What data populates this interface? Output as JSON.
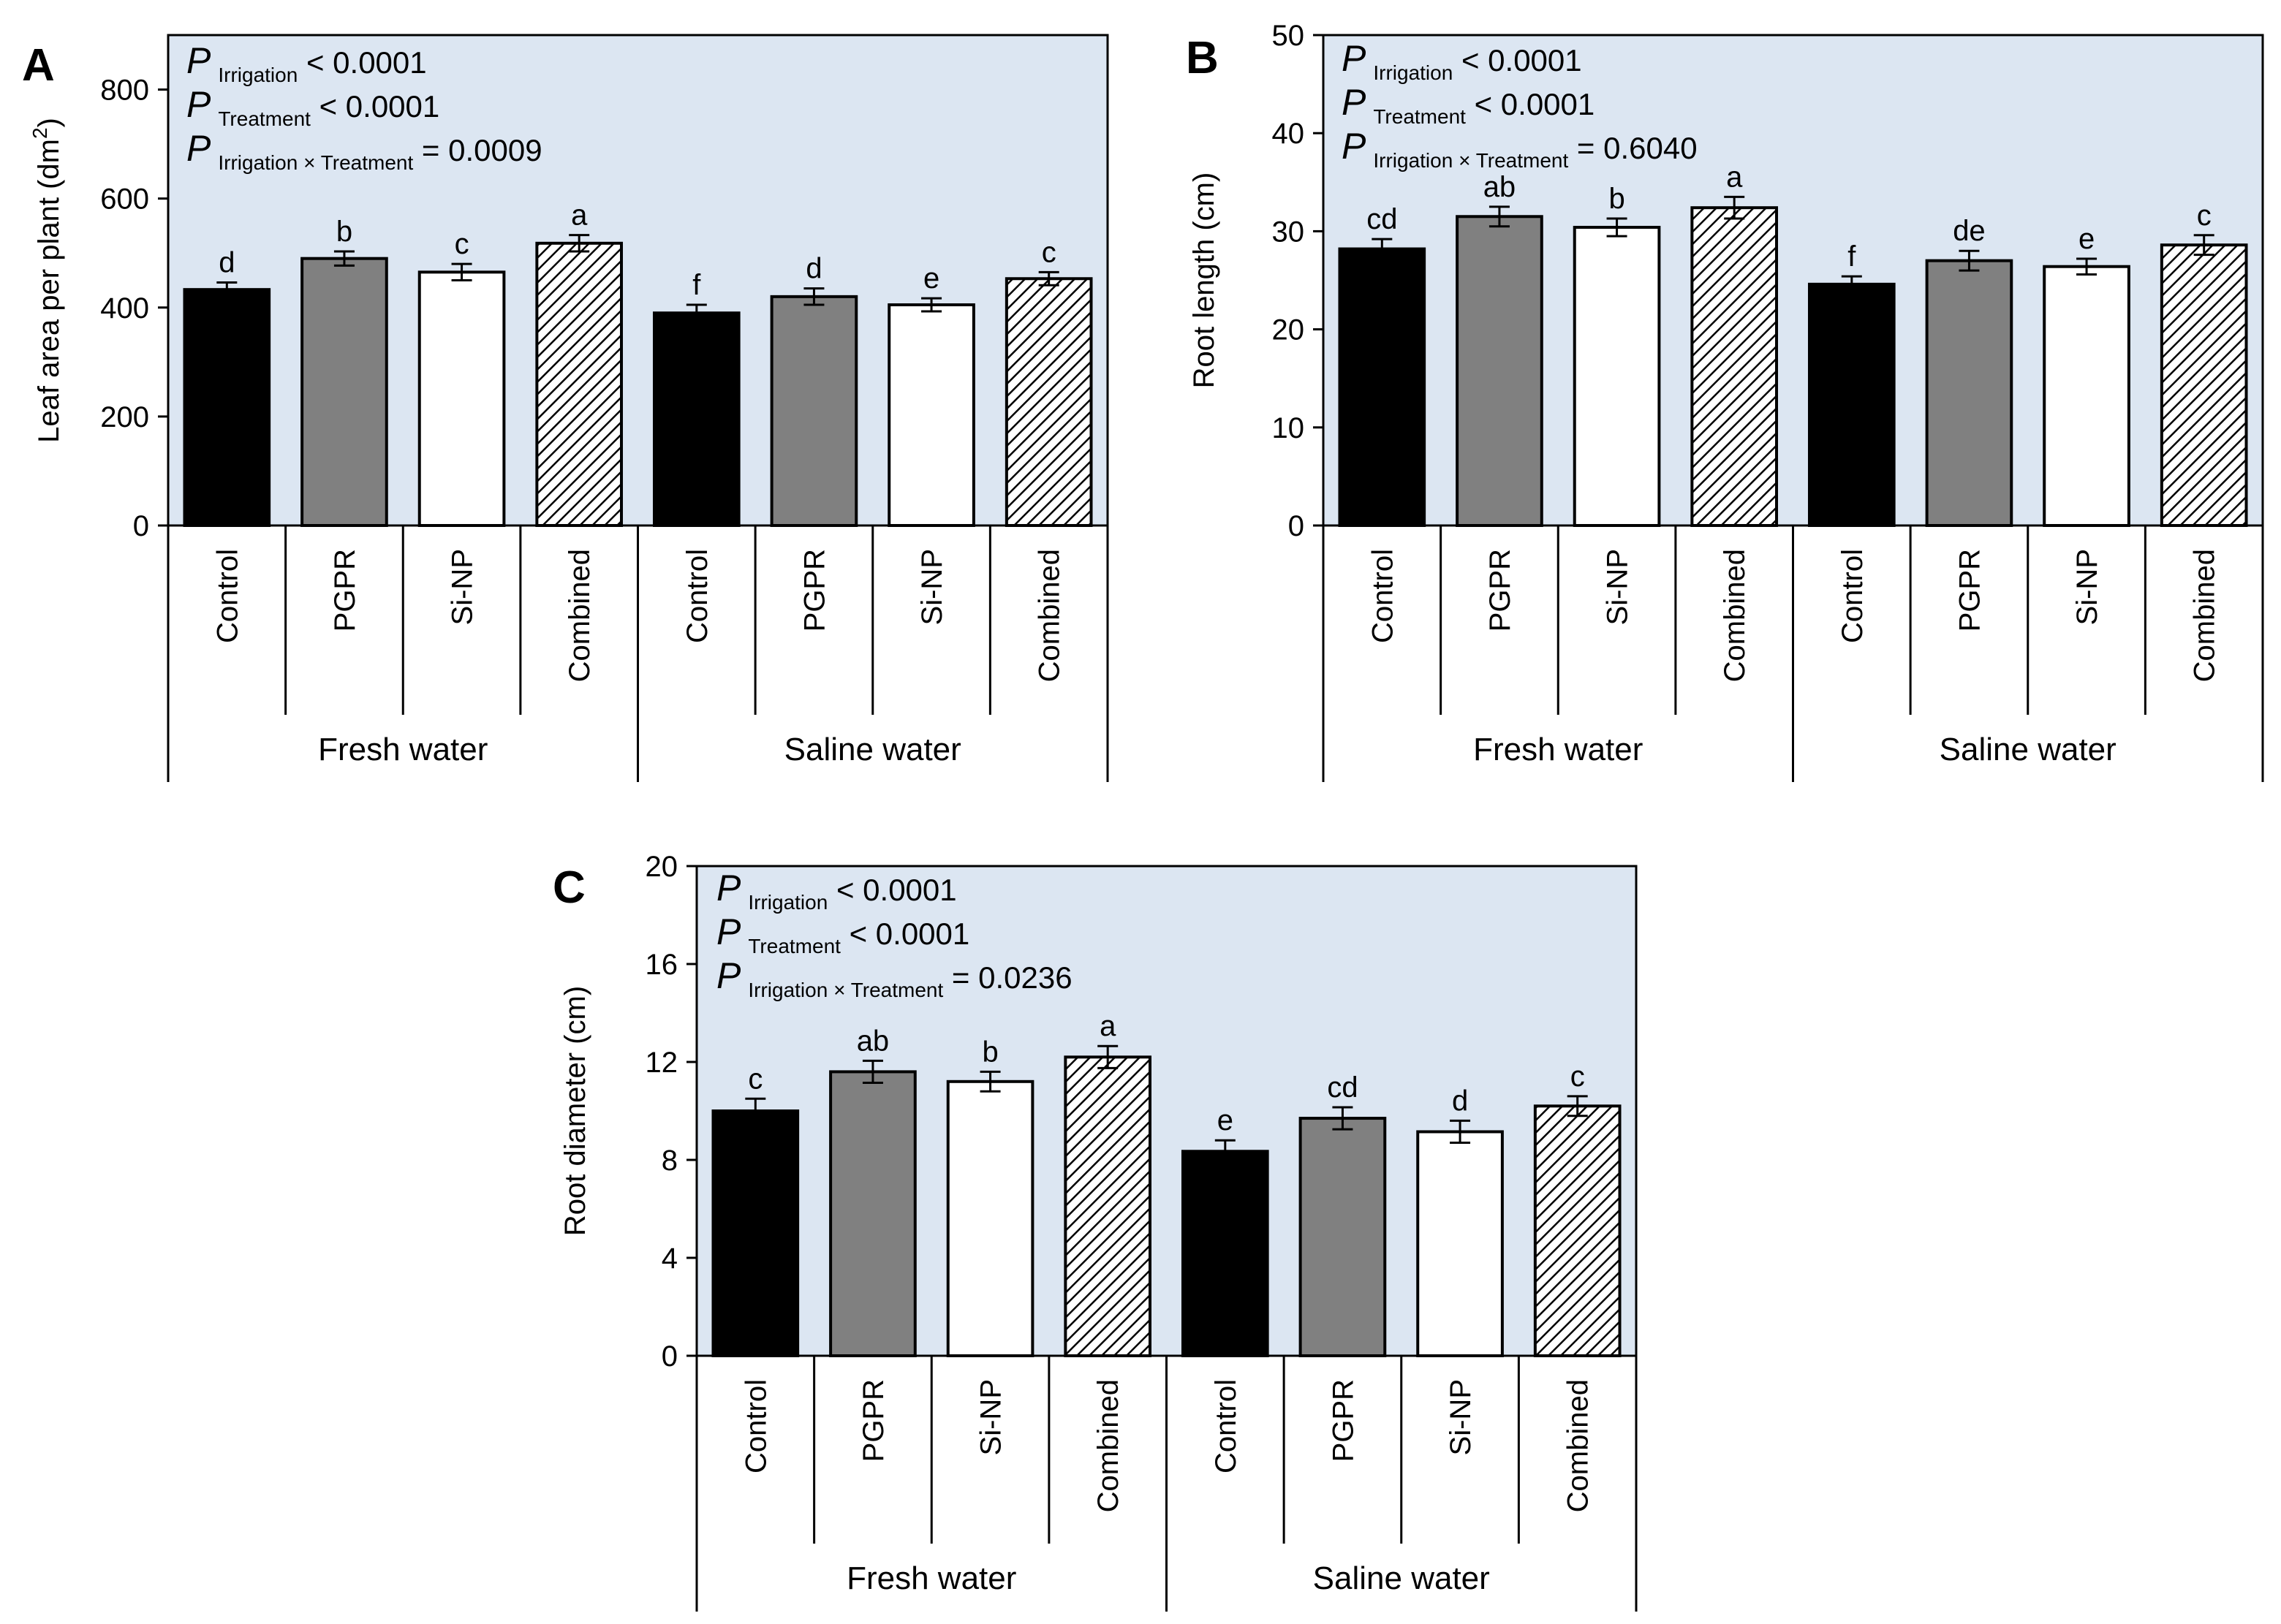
{
  "figure": {
    "colors": {
      "plot_background": "#dce6f2",
      "control": "#000000",
      "pgpr": "#808080",
      "sinp": "#ffffff",
      "combined_pattern": "hatched",
      "axis": "#000000"
    },
    "groups": [
      "Fresh water",
      "Saline water"
    ]
  },
  "chart_data": [
    {
      "type": "bar",
      "panel": "A",
      "ylabel": "Leaf area per plant (dm2)",
      "ylabel_main": "Leaf area per plant (dm",
      "ylabel_sup": "2",
      "ylabel_close": ")",
      "ylim": [
        0,
        900
      ],
      "yticks": [
        0,
        200,
        400,
        600,
        800
      ],
      "groups": [
        "Fresh water",
        "Saline water"
      ],
      "categories": [
        "Control",
        "PGPR",
        "Si-NP",
        "Combined",
        "Control",
        "PGPR",
        "Si-NP",
        "Combined"
      ],
      "values": [
        433,
        490,
        465,
        518,
        390,
        420,
        405,
        453
      ],
      "errors": [
        13,
        13,
        15,
        15,
        15,
        15,
        12,
        12
      ],
      "letters": [
        "d",
        "b",
        "c",
        "a",
        "f",
        "d",
        "e",
        "c"
      ],
      "fills": [
        "black",
        "gray",
        "white",
        "hatch",
        "black",
        "gray",
        "white",
        "hatch"
      ],
      "stats": [
        {
          "p": "P",
          "sub": "Irrigation",
          "rest": " < 0.0001"
        },
        {
          "p": "P",
          "sub": "Treatment",
          "rest": " < 0.0001"
        },
        {
          "p": "P",
          "sub": "Irrigation × Treatment",
          "rest": " = 0.0009"
        }
      ]
    },
    {
      "type": "bar",
      "panel": "B",
      "ylabel": "Root length (cm)",
      "ylim": [
        0,
        50
      ],
      "yticks": [
        0,
        10,
        20,
        30,
        40,
        50
      ],
      "groups": [
        "Fresh water",
        "Saline water"
      ],
      "categories": [
        "Control",
        "PGPR",
        "Si-NP",
        "Combined",
        "Control",
        "PGPR",
        "Si-NP",
        "Combined"
      ],
      "values": [
        28.2,
        31.5,
        30.4,
        32.4,
        24.6,
        27.0,
        26.4,
        28.6
      ],
      "errors": [
        1.0,
        1.0,
        0.9,
        1.1,
        0.8,
        1.0,
        0.8,
        1.0
      ],
      "letters": [
        "cd",
        "ab",
        "b",
        "a",
        "f",
        "de",
        "e",
        "c"
      ],
      "fills": [
        "black",
        "gray",
        "white",
        "hatch",
        "black",
        "gray",
        "white",
        "hatch"
      ],
      "stats": [
        {
          "p": "P",
          "sub": "Irrigation",
          "rest": " < 0.0001"
        },
        {
          "p": "P",
          "sub": "Treatment",
          "rest": " < 0.0001"
        },
        {
          "p": "P",
          "sub": "Irrigation × Treatment",
          "rest": " = 0.6040"
        }
      ]
    },
    {
      "type": "bar",
      "panel": "C",
      "ylabel": "Root diameter (cm)",
      "ylim": [
        0,
        20
      ],
      "yticks": [
        0,
        4,
        8,
        12,
        16,
        20
      ],
      "groups": [
        "Fresh water",
        "Saline water"
      ],
      "categories": [
        "Control",
        "PGPR",
        "Si-NP",
        "Combined",
        "Control",
        "PGPR",
        "Si-NP",
        "Combined"
      ],
      "values": [
        10.0,
        11.6,
        11.2,
        12.2,
        8.35,
        9.7,
        9.15,
        10.2
      ],
      "errors": [
        0.5,
        0.45,
        0.4,
        0.45,
        0.45,
        0.45,
        0.45,
        0.4
      ],
      "letters": [
        "c",
        "ab",
        "b",
        "a",
        "e",
        "cd",
        "d",
        "c"
      ],
      "fills": [
        "black",
        "gray",
        "white",
        "hatch",
        "black",
        "gray",
        "white",
        "hatch"
      ],
      "stats": [
        {
          "p": "P",
          "sub": "Irrigation",
          "rest": " < 0.0001"
        },
        {
          "p": "P",
          "sub": "Treatment",
          "rest": " < 0.0001"
        },
        {
          "p": "P",
          "sub": "Irrigation × Treatment",
          "rest": " = 0.0236"
        }
      ]
    }
  ]
}
